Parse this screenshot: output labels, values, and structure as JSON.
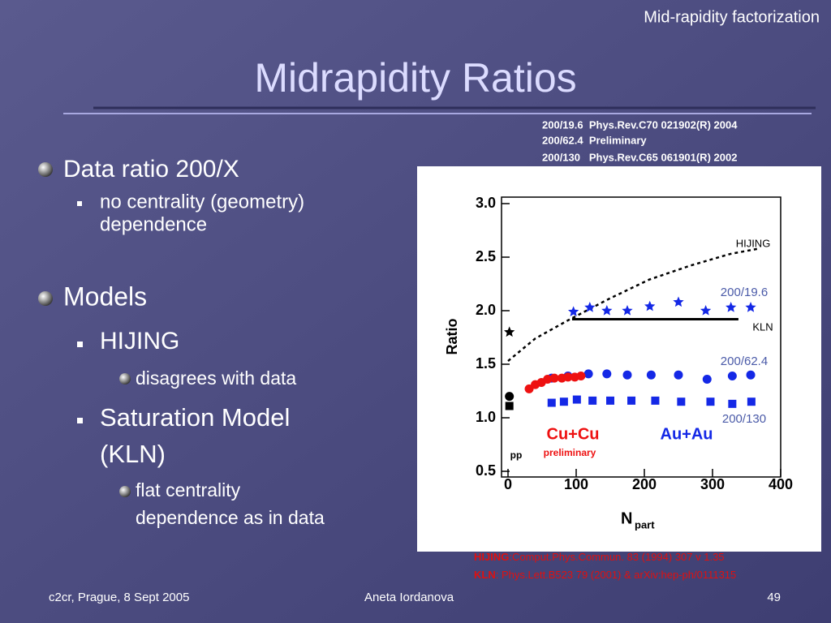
{
  "header": {
    "topic": "Mid-rapidity factorization",
    "title": "Midrapidity Ratios"
  },
  "refs": [
    "200/19.6  Phys.Rev.C70 021902(R) 2004",
    "200/62.4  Preliminary",
    "200/130   Phys.Rev.C65 061901(R) 2002"
  ],
  "bullets": [
    {
      "text": [
        "Data ratio 200/X"
      ],
      "sub": [
        {
          "text": [
            "no centrality (geometry)",
            "dependence"
          ],
          "sub": []
        }
      ]
    },
    {
      "text": [
        "Models"
      ],
      "sub": [
        {
          "text": [
            "HIJING"
          ],
          "sub": [
            {
              "text": [
                "disagrees with data"
              ]
            }
          ]
        },
        {
          "text": [
            "Saturation Model",
            "(KLN)"
          ],
          "sub": [
            {
              "text": [
                "flat centrality",
                "dependence as in data"
              ]
            }
          ]
        }
      ]
    }
  ],
  "citations": [
    {
      "key": "HIJING",
      "text": ":Comput.Phys.Commun. 83 (1994) 307 v 1.35"
    },
    {
      "key": "KLN",
      "text": ": Phys.Lett.B523 79 (2001) & arXiv:hep-ph/0111315"
    }
  ],
  "footer": {
    "left": "c2cr, Prague, 8 Sept 2005",
    "center": "Aneta Iordanova",
    "page": "49"
  },
  "chart_data": {
    "type": "scatter",
    "ylabel": "Ratio",
    "xlabel": "N",
    "xlabel_sub": "part",
    "xlim": [
      0,
      400
    ],
    "xticks": [
      0,
      100,
      200,
      300,
      400
    ],
    "ylim": [
      0.5,
      3.0
    ],
    "yticks": [
      0.5,
      {
        "value": 1,
        "label": "1.0"
      },
      1.5,
      {
        "value": 2,
        "label": "2.0"
      },
      2.5,
      {
        "value": 3,
        "label": "3.0"
      }
    ],
    "annotations": [
      "Au+Au",
      "preliminary"
    ],
    "series": [
      {
        "name": "200/19.6",
        "color": "#1428e6",
        "marker": "star",
        "x": [
          96,
          120,
          145,
          175,
          208,
          250,
          290,
          327,
          356
        ],
        "values": [
          1.99,
          2.03,
          2.0,
          2.0,
          2.04,
          2.08,
          2.0,
          2.03,
          2.03
        ]
      },
      {
        "name": "200/62.4",
        "color": "#1428e6",
        "marker": "circle",
        "x": [
          64,
          88,
          118,
          145,
          175,
          210,
          250,
          292,
          329,
          356
        ],
        "values": [
          1.37,
          1.39,
          1.41,
          1.41,
          1.4,
          1.4,
          1.4,
          1.36,
          1.39,
          1.4
        ]
      },
      {
        "name": "200/130",
        "color": "#1428e6",
        "marker": "square",
        "x": [
          64,
          82,
          101,
          124,
          150,
          181,
          216,
          254,
          297,
          329,
          357
        ],
        "values": [
          1.14,
          1.15,
          1.17,
          1.16,
          1.16,
          1.16,
          1.16,
          1.15,
          1.15,
          1.13,
          1.15
        ]
      },
      {
        "name": "Cu+Cu",
        "color": "#ee1111",
        "marker": "circle",
        "x": [
          31,
          40,
          49,
          58,
          68,
          79,
          88,
          98,
          107
        ],
        "values": [
          1.27,
          1.31,
          1.33,
          1.36,
          1.37,
          1.37,
          1.38,
          1.38,
          1.39
        ]
      },
      {
        "name": "pp",
        "color": "#000000",
        "markers": [
          "star",
          "circle",
          "square"
        ],
        "x": [
          2,
          2,
          2
        ],
        "values": [
          1.8,
          1.2,
          1.11
        ]
      }
    ],
    "lines": [
      {
        "name": "HIJING",
        "color": "#000000",
        "dash": true,
        "x": [
          0,
          40,
          88,
          148,
          207,
          267,
          326,
          368
        ],
        "values": [
          1.53,
          1.74,
          1.91,
          2.11,
          2.29,
          2.42,
          2.53,
          2.58
        ]
      },
      {
        "name": "KLN",
        "color": "#000000",
        "dash": false,
        "x": [
          94,
          338
        ],
        "values": [
          1.92,
          1.92
        ]
      }
    ]
  }
}
